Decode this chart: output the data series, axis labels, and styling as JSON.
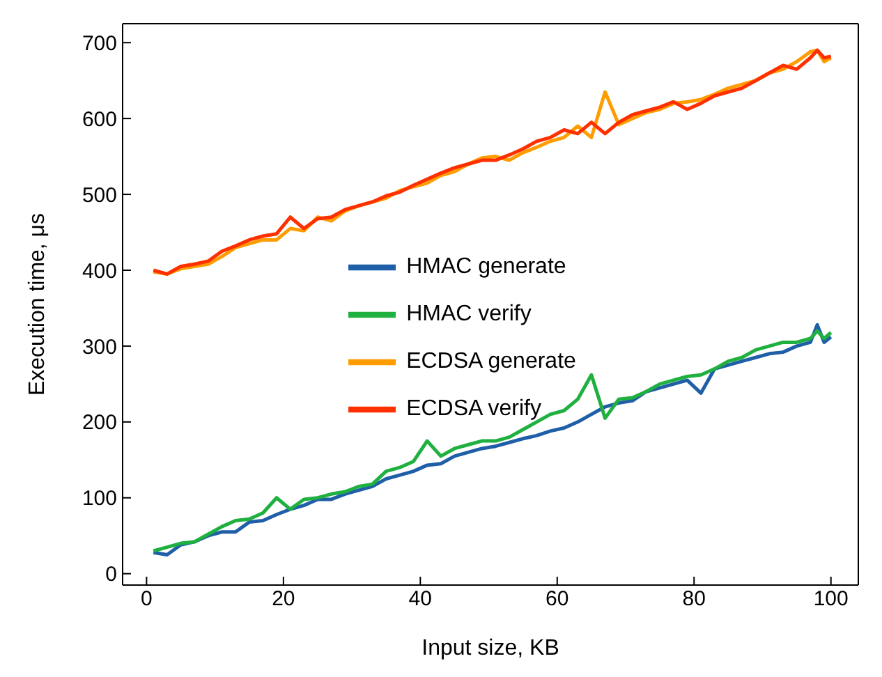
{
  "chart_data": {
    "type": "line",
    "xlabel": "Input size, KB",
    "ylabel": "Execution time, μs",
    "x": [
      1,
      3,
      5,
      7,
      9,
      11,
      13,
      15,
      17,
      19,
      21,
      23,
      25,
      27,
      29,
      31,
      33,
      35,
      37,
      39,
      41,
      43,
      45,
      47,
      49,
      51,
      53,
      55,
      57,
      59,
      61,
      63,
      65,
      67,
      69,
      71,
      73,
      75,
      77,
      79,
      81,
      83,
      85,
      87,
      89,
      91,
      93,
      95,
      97,
      98,
      99,
      100
    ],
    "xlim": [
      -3.5,
      104
    ],
    "xticks": [
      0,
      20,
      40,
      60,
      80,
      100
    ],
    "ylim": [
      -15,
      725
    ],
    "yticks": [
      0,
      100,
      200,
      300,
      400,
      500,
      600,
      700
    ],
    "grid": false,
    "legend": "center",
    "marker": "none",
    "line_style": "solid",
    "series": [
      {
        "name": "HMAC generate",
        "color": "#1f5fa8",
        "values": [
          28,
          25,
          38,
          42,
          50,
          55,
          55,
          68,
          70,
          78,
          85,
          90,
          98,
          98,
          105,
          110,
          115,
          125,
          130,
          135,
          143,
          145,
          155,
          160,
          165,
          168,
          173,
          178,
          182,
          188,
          192,
          200,
          210,
          220,
          225,
          228,
          240,
          245,
          250,
          255,
          238,
          270,
          275,
          280,
          285,
          290,
          292,
          300,
          305,
          328,
          305,
          312
        ]
      },
      {
        "name": "HMAC verify",
        "color": "#1fb040",
        "values": [
          30,
          35,
          40,
          42,
          52,
          62,
          70,
          72,
          80,
          100,
          85,
          98,
          100,
          105,
          108,
          115,
          118,
          135,
          140,
          148,
          175,
          155,
          165,
          170,
          175,
          175,
          180,
          190,
          200,
          210,
          215,
          230,
          262,
          205,
          230,
          232,
          240,
          250,
          255,
          260,
          262,
          270,
          280,
          285,
          295,
          300,
          305,
          305,
          310,
          320,
          310,
          318
        ]
      },
      {
        "name": "ECDSA generate",
        "color": "#ff9d00",
        "values": [
          398,
          395,
          402,
          405,
          408,
          418,
          430,
          435,
          440,
          440,
          455,
          452,
          470,
          465,
          478,
          485,
          490,
          495,
          505,
          510,
          515,
          525,
          530,
          540,
          548,
          550,
          545,
          555,
          562,
          570,
          575,
          590,
          575,
          635,
          592,
          600,
          608,
          612,
          620,
          622,
          625,
          632,
          640,
          645,
          650,
          660,
          665,
          675,
          688,
          690,
          675,
          680
        ]
      },
      {
        "name": "ECDSA verify",
        "color": "#ff3000",
        "values": [
          400,
          395,
          405,
          408,
          412,
          425,
          432,
          440,
          445,
          448,
          470,
          455,
          468,
          470,
          480,
          485,
          490,
          498,
          503,
          512,
          520,
          528,
          535,
          540,
          545,
          545,
          552,
          560,
          570,
          575,
          585,
          580,
          595,
          580,
          595,
          605,
          610,
          615,
          622,
          612,
          620,
          630,
          635,
          640,
          650,
          660,
          670,
          665,
          680,
          690,
          680,
          682
        ]
      }
    ]
  }
}
